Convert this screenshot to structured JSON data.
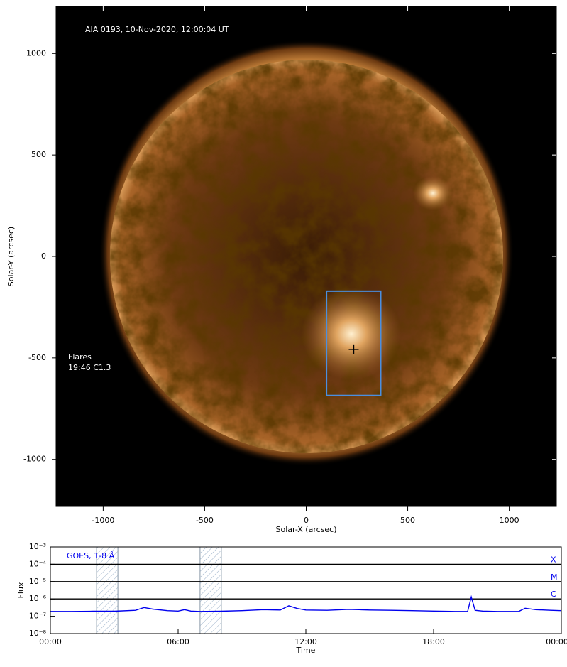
{
  "chart_data": [
    {
      "type": "image",
      "annotation": "AIA 0193, 10-Nov-2020, 12:00:04 UT",
      "flare_title": "Flares",
      "flare_label": "19:46 C1.3",
      "xlabel": "Solar-X (arcsec)",
      "ylabel": "Solar-Y (arcsec)",
      "xlim": [
        -1232,
        1232
      ],
      "ylim": [
        -1232,
        1232
      ],
      "xticks": [
        -1000,
        -500,
        0,
        500,
        1000
      ],
      "yticks": [
        -1000,
        -500,
        0,
        500,
        1000
      ],
      "box": {
        "x": [
          100,
          367
        ],
        "y": [
          -685,
          -171
        ],
        "color": "#4a8fe0"
      },
      "marker": {
        "x": 234,
        "y": -458
      }
    },
    {
      "type": "line",
      "ylog": true,
      "xlabel": "Time",
      "ylabel": "Flux",
      "xlim": [
        0,
        24
      ],
      "ylim": [
        1e-08,
        0.001
      ],
      "xticks": [
        {
          "value": 0,
          "label": "00:00"
        },
        {
          "value": 6,
          "label": "06:00"
        },
        {
          "value": 12,
          "label": "12:00"
        },
        {
          "value": 18,
          "label": "18:00"
        },
        {
          "value": 24,
          "label": "00:00"
        }
      ],
      "yticks": [
        {
          "value": 1e-08,
          "label": "10⁻⁸"
        },
        {
          "value": 1e-07,
          "label": "10⁻⁷"
        },
        {
          "value": 1e-06,
          "label": "10⁻⁶"
        },
        {
          "value": 1e-05,
          "label": "10⁻⁵"
        },
        {
          "value": 0.0001,
          "label": "10⁻⁴"
        },
        {
          "value": 0.001,
          "label": "10⁻³"
        }
      ],
      "levels": [
        {
          "value": 0.0001,
          "label": "X"
        },
        {
          "value": 1e-05,
          "label": "M"
        },
        {
          "value": 1e-06,
          "label": "C"
        }
      ],
      "shaded": [
        [
          2.17,
          3.17
        ],
        [
          7.03,
          8.03
        ]
      ],
      "x": [
        0,
        1,
        2,
        3,
        4,
        4.4,
        4.8,
        5.5,
        6,
        6.3,
        6.6,
        7,
        8,
        9,
        10,
        10.8,
        11.2,
        11.6,
        12,
        13,
        14,
        14.5,
        15,
        16,
        17,
        18,
        19,
        19.6,
        19.77,
        19.95,
        20.3,
        21,
        22,
        22.3,
        22.8,
        23.5,
        24
      ],
      "series": [
        {
          "name": "GOES, 1-8 Å",
          "color": "#0000ee",
          "values": [
            1.9e-07,
            1.9e-07,
            1.95e-07,
            1.95e-07,
            2.2e-07,
            3.2e-07,
            2.6e-07,
            2.1e-07,
            2e-07,
            2.4e-07,
            2e-07,
            1.9e-07,
            1.95e-07,
            2.1e-07,
            2.4e-07,
            2.3e-07,
            4e-07,
            2.8e-07,
            2.3e-07,
            2.2e-07,
            2.5e-07,
            2.4e-07,
            2.3e-07,
            2.2e-07,
            2.1e-07,
            2e-07,
            1.9e-07,
            1.9e-07,
            1.3e-06,
            2.2e-07,
            2e-07,
            1.9e-07,
            1.9e-07,
            2.9e-07,
            2.4e-07,
            2.2e-07,
            2.1e-07
          ]
        }
      ]
    }
  ]
}
